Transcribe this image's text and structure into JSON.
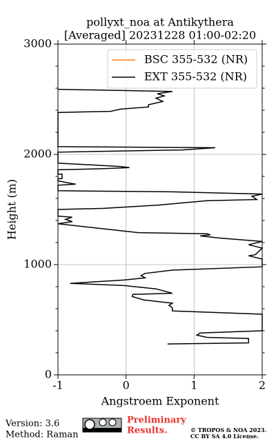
{
  "chart_data": {
    "type": "profile",
    "title": "pollyxt_noa at Antikythera",
    "subtitle": "[Averaged] 20231228 01:00-02:20",
    "xlabel": "Angstroem Exponent",
    "ylabel": "Height (m)",
    "xlim": [
      -1,
      2
    ],
    "ylim": [
      0,
      3000
    ],
    "xticks": [
      -1,
      0,
      1,
      2
    ],
    "yticks": [
      0,
      1000,
      2000,
      3000
    ],
    "yminorticks": [
      200,
      400,
      600,
      800,
      1200,
      1400,
      1600,
      1800,
      2200,
      2400,
      2600,
      2800
    ],
    "grid": true,
    "legend": "upper right",
    "series": [
      {
        "name": "BSC 355-532 (NR)",
        "color": "#ff7f0e",
        "heights": [],
        "values": []
      },
      {
        "name": "EXT 355-532 (NR)",
        "color": "#000000",
        "heights": [
          2590,
          2570,
          2550,
          2530,
          2510,
          2480,
          2450,
          2430,
          2410,
          2390,
          2380,
          2070,
          2060,
          2040,
          2020,
          1920,
          1900,
          1890,
          1880,
          1870,
          1860,
          1820,
          1820,
          1780,
          1780,
          1760,
          1740,
          1730,
          1720,
          1670,
          1660,
          1640,
          1620,
          1590,
          1580,
          1540,
          1510,
          1500,
          1440,
          1430,
          1410,
          1390,
          1370,
          1290,
          1280,
          1270,
          1260,
          1240,
          1210,
          1180,
          1150,
          1090,
          1080,
          1050,
          980,
          950,
          920,
          900,
          880,
          860,
          830,
          810,
          780,
          740,
          730,
          710,
          680,
          650,
          630,
          610,
          580,
          550,
          400,
          380,
          360,
          340,
          330,
          290,
          280
        ],
        "values": [
          -1,
          0.68,
          0.46,
          0.56,
          0.44,
          0.54,
          0.33,
          0.33,
          -0.08,
          -0.23,
          -1,
          -1,
          1.31,
          0.83,
          -1,
          -1,
          -0.38,
          -0.08,
          0.05,
          -0.33,
          -1,
          -1,
          -0.94,
          -0.94,
          -1,
          -1,
          -0.84,
          -0.74,
          -1,
          -1,
          0.68,
          2.0,
          1.85,
          1.92,
          1.19,
          0.48,
          -0.33,
          -1,
          -1,
          -0.79,
          -0.89,
          -0.79,
          -1,
          0.18,
          1.19,
          1.24,
          1.09,
          1.39,
          2.0,
          1.8,
          2.0,
          1.9,
          1.8,
          2.0,
          2.0,
          0.68,
          0.28,
          0.22,
          0.28,
          -0.03,
          -0.82,
          -0.03,
          0.44,
          0.68,
          0.1,
          0.09,
          0.26,
          0.68,
          0.63,
          0.68,
          0.68,
          2.0,
          2.0,
          1.09,
          1.04,
          1.19,
          1.8,
          1.8,
          0.61
        ]
      }
    ]
  },
  "footer": {
    "version": "Version: 3.6",
    "method": "Method: Raman",
    "preliminary": "Preliminary",
    "results": "Results.",
    "copyright": "© TROPOS & NOA 2023.",
    "license": "CC BY SA 4.0 License."
  }
}
